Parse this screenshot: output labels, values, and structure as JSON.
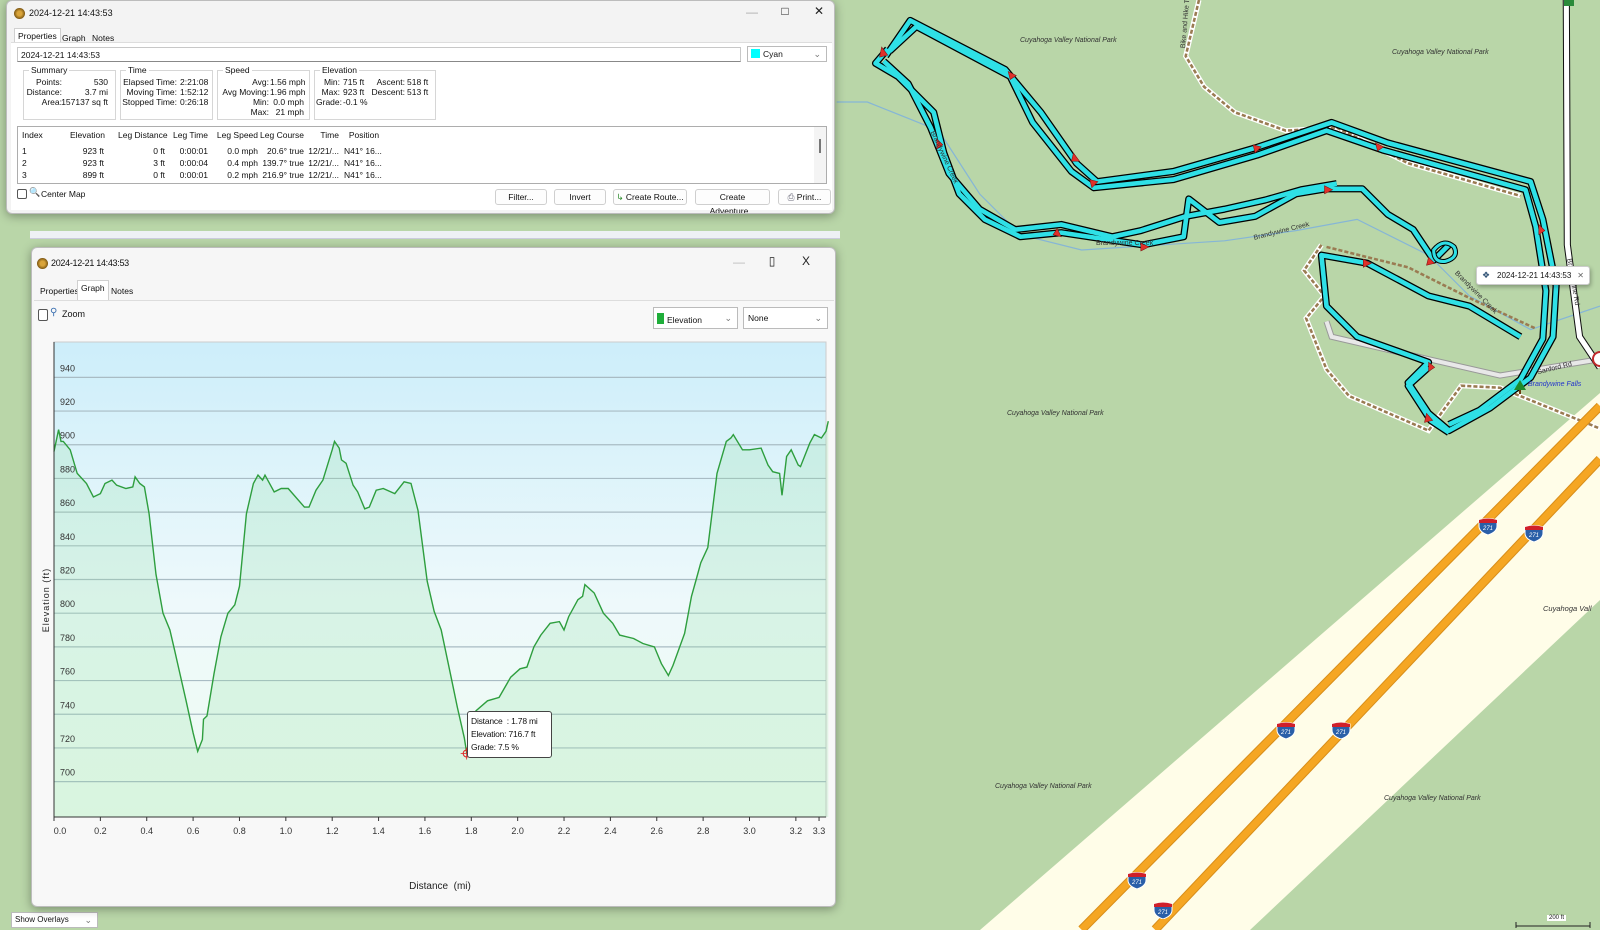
{
  "map": {
    "park_labels": [
      "Cuyahoga Valley National Park",
      "Cuyahoga Valley National Park",
      "Cuyahoga Valley National Park",
      "Cuyahoga Valley National Park",
      "Cuyahoga Valley National Park",
      "Cuyahoga Vall"
    ],
    "creek_labels": [
      "Brandywine Creek",
      "Brandywine Creek",
      "Brandywine Creek",
      "Brandywine Creek"
    ],
    "trail_label": "Bike and Hike Trl",
    "road_labels": [
      "Brandywine Rd",
      "Sanford Rd"
    ],
    "poi_label": "Brandywine Falls",
    "highway": "271",
    "flag_label": "2024-12-21 14:43:53",
    "overlay_select": "Show Overlays",
    "scale_label": "200 ft",
    "colors": {
      "track": "#2fe0e6",
      "land": "#b9d6a8",
      "band": "#fffde8",
      "highway": "#f5a623"
    }
  },
  "props_window": {
    "title": "2024-12-21 14:43:53",
    "tabs": [
      "Properties",
      "Graph",
      "Notes"
    ],
    "name_value": "2024-12-21 14:43:53",
    "color_select": "Cyan",
    "summary": {
      "title": "Summary",
      "labels": [
        "Points:",
        "Distance:",
        "Area:"
      ],
      "values": [
        "530",
        "3.7 mi",
        "157137 sq ft"
      ]
    },
    "time": {
      "title": "Time",
      "labels": [
        "Elapsed Time:",
        "Moving Time:",
        "Stopped Time:"
      ],
      "values": [
        "2:21:08",
        "1:52:12",
        "0:26:18"
      ]
    },
    "speed": {
      "title": "Speed",
      "labels": [
        "Avg:",
        "Avg Moving:",
        "Min:",
        "Max:"
      ],
      "values": [
        "1.56 mph",
        "1.96 mph",
        "0.0 mph",
        "21 mph"
      ]
    },
    "elevation": {
      "title": "Elevation",
      "labels": [
        "Min:",
        "Max:",
        "Grade:"
      ],
      "values": [
        "715 ft",
        "923 ft",
        "-0.1 %"
      ],
      "labels2": [
        "Ascent:",
        "Descent:"
      ],
      "values2": [
        "518 ft",
        "513 ft"
      ]
    },
    "table": {
      "headers": [
        "Index",
        "Elevation",
        "Leg Distance",
        "Leg Time",
        "Leg Speed",
        "Leg Course",
        "Time",
        "Position"
      ],
      "rows": [
        [
          "1",
          "923 ft",
          "0 ft",
          "0:00:01",
          "0.0 mph",
          "20.6° true",
          "12/21/...",
          "N41° 16..."
        ],
        [
          "2",
          "923 ft",
          "3 ft",
          "0:00:04",
          "0.4 mph",
          "139.7° true",
          "12/21/...",
          "N41° 16..."
        ],
        [
          "3",
          "899 ft",
          "0 ft",
          "0:00:01",
          "0.2 mph",
          "216.9° true",
          "12/21/...",
          "N41° 16..."
        ]
      ]
    },
    "center_map": "Center Map",
    "buttons": [
      "Filter...",
      "Invert",
      "Create Route...",
      "Create Adventure...",
      "Print..."
    ]
  },
  "graph_window": {
    "title": "2024-12-21 14:43:53",
    "tabs": [
      "Properties",
      "Graph",
      "Notes"
    ],
    "zoom_label": "Zoom",
    "primary_select": "Elevation",
    "secondary_select": "None",
    "tooltip": {
      "distance": "Distance  : 1.78 mi",
      "elevation": "Elevation: 716.7 ft",
      "grade": "Grade: 7.5 %"
    }
  },
  "chart_data": {
    "type": "area",
    "title": "",
    "xlabel": "Distance  (mi)",
    "ylabel": "Elevation (ft)",
    "xlim": [
      0,
      3.33
    ],
    "ylim": [
      679,
      961
    ],
    "xticks": [
      0.0,
      0.2,
      0.4,
      0.6,
      0.8,
      1.0,
      1.2,
      1.4,
      1.6,
      1.8,
      2.0,
      2.2,
      2.4,
      2.6,
      2.8,
      3.0,
      3.2,
      3.3
    ],
    "xtick_labels": [
      "0.0",
      "0.2",
      "0.4",
      "0.6",
      "0.8",
      "1.0",
      "1.2",
      "1.4",
      "1.6",
      "1.8",
      "2.0",
      "2.2",
      "2.4",
      "2.6",
      "2.8",
      "3.0",
      "3.2",
      "3.3"
    ],
    "yticks": [
      700,
      720,
      740,
      760,
      780,
      800,
      820,
      840,
      860,
      880,
      900,
      920,
      940
    ],
    "ytick_labels": [
      "700",
      "720",
      "740",
      "760",
      "780",
      "800",
      "820",
      "840",
      "860",
      "880",
      "900",
      "920",
      "940"
    ],
    "grid": true,
    "highlight": {
      "x": 1.78,
      "y": 716.7
    },
    "series": [
      {
        "name": "Elevation",
        "color": "#2e9e3e",
        "x": [
          0,
          0.02,
          0.03,
          0.04,
          0.07,
          0.1,
          0.14,
          0.17,
          0.2,
          0.22,
          0.25,
          0.27,
          0.31,
          0.34,
          0.35,
          0.37,
          0.39,
          0.41,
          0.44,
          0.47,
          0.5,
          0.52,
          0.54,
          0.57,
          0.6,
          0.62,
          0.64,
          0.645,
          0.66,
          0.69,
          0.72,
          0.75,
          0.78,
          0.8,
          0.83,
          0.86,
          0.88,
          0.9,
          0.91,
          0.95,
          0.98,
          1.01,
          1.08,
          1.1,
          1.13,
          1.16,
          1.2,
          1.21,
          1.23,
          1.24,
          1.26,
          1.29,
          1.31,
          1.34,
          1.36,
          1.39,
          1.42,
          1.47,
          1.51,
          1.54,
          1.57,
          1.61,
          1.64,
          1.67,
          1.71,
          1.74,
          1.77,
          1.78,
          1.8,
          1.82,
          1.87,
          1.92,
          1.97,
          2.01,
          2.04,
          2.07,
          2.1,
          2.14,
          2.18,
          2.2,
          2.22,
          2.26,
          2.28,
          2.29,
          2.33,
          2.37,
          2.41,
          2.44,
          2.5,
          2.54,
          2.59,
          2.62,
          2.65,
          2.67,
          2.72,
          2.75,
          2.77,
          2.79,
          2.82,
          2.86,
          2.9,
          2.92,
          2.93,
          2.97,
          3.0,
          3.05,
          3.08,
          3.1,
          3.13,
          3.14,
          3.16,
          3.18,
          3.21,
          3.22,
          3.26,
          3.28,
          3.31,
          3.33,
          3.34
        ],
        "y": [
          896,
          909,
          902,
          902,
          897,
          883,
          877,
          869,
          871,
          877,
          879,
          876,
          874,
          875,
          881,
          877,
          875,
          859,
          823,
          800,
          790,
          778,
          766,
          748,
          729,
          718,
          725,
          737,
          739,
          764,
          786,
          800,
          805,
          816,
          859,
          877,
          882,
          879,
          882,
          872,
          874,
          874,
          863,
          863,
          873,
          879,
          897,
          902,
          898,
          891,
          889,
          876,
          872,
          862,
          863,
          873,
          874,
          871,
          878,
          877,
          861,
          819,
          801,
          790,
          764,
          744,
          726,
          717,
          729,
          742,
          748,
          750,
          762,
          767,
          768,
          780,
          787,
          794,
          795,
          790,
          798,
          808,
          810,
          817,
          812,
          800,
          794,
          787,
          785,
          782,
          780,
          770,
          763,
          769,
          788,
          810,
          820,
          830,
          839,
          883,
          902,
          904,
          906,
          897,
          897,
          898,
          888,
          884,
          883,
          870,
          893,
          897,
          888,
          887,
          901,
          906,
          904,
          908,
          914
        ]
      }
    ]
  }
}
